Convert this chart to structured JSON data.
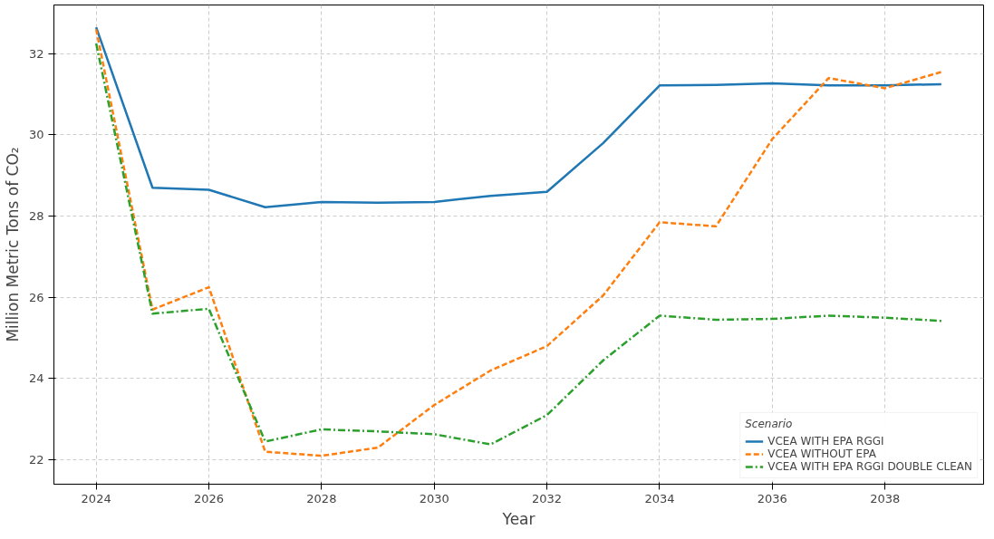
{
  "chart_data": {
    "type": "line",
    "xlabel": "Year",
    "ylabel": "Million Metric Tons of CO₂",
    "legend_title": "Scenario",
    "x": [
      2024,
      2025,
      2026,
      2027,
      2028,
      2029,
      2030,
      2031,
      2032,
      2033,
      2034,
      2035,
      2036,
      2037,
      2038,
      2039
    ],
    "series": [
      {
        "name": "VCEA WITH EPA RGGI",
        "color": "#1f77b4",
        "line_style": "solid",
        "values": [
          32.65,
          28.7,
          28.65,
          28.22,
          28.35,
          28.33,
          28.35,
          28.5,
          28.6,
          29.8,
          31.22,
          31.23,
          31.27,
          31.22,
          31.22,
          31.25
        ]
      },
      {
        "name": "VCEA WITHOUT EPA",
        "color": "#ff7f0e",
        "line_style": "dashed",
        "values": [
          32.6,
          25.7,
          26.25,
          22.2,
          22.1,
          22.3,
          23.35,
          24.2,
          24.8,
          26.05,
          27.85,
          27.75,
          29.9,
          31.4,
          31.15,
          31.55
        ]
      },
      {
        "name": "VCEA WITH EPA RGGI DOUBLE CLEAN",
        "color": "#2ca02c",
        "line_style": "dashdot",
        "values": [
          32.25,
          25.6,
          25.72,
          22.45,
          22.75,
          22.7,
          22.63,
          22.38,
          23.1,
          24.45,
          25.55,
          25.45,
          25.47,
          25.55,
          25.5,
          25.42
        ]
      }
    ],
    "xlim": [
      2023.25,
      2039.75
    ],
    "xticks": [
      2024,
      2026,
      2028,
      2030,
      2032,
      2034,
      2036,
      2038
    ],
    "ylim": [
      21.4,
      33.2
    ],
    "yticks": [
      22,
      24,
      26,
      28,
      30,
      32
    ],
    "grid": true,
    "legend": "bottom right",
    "marker": "none"
  }
}
